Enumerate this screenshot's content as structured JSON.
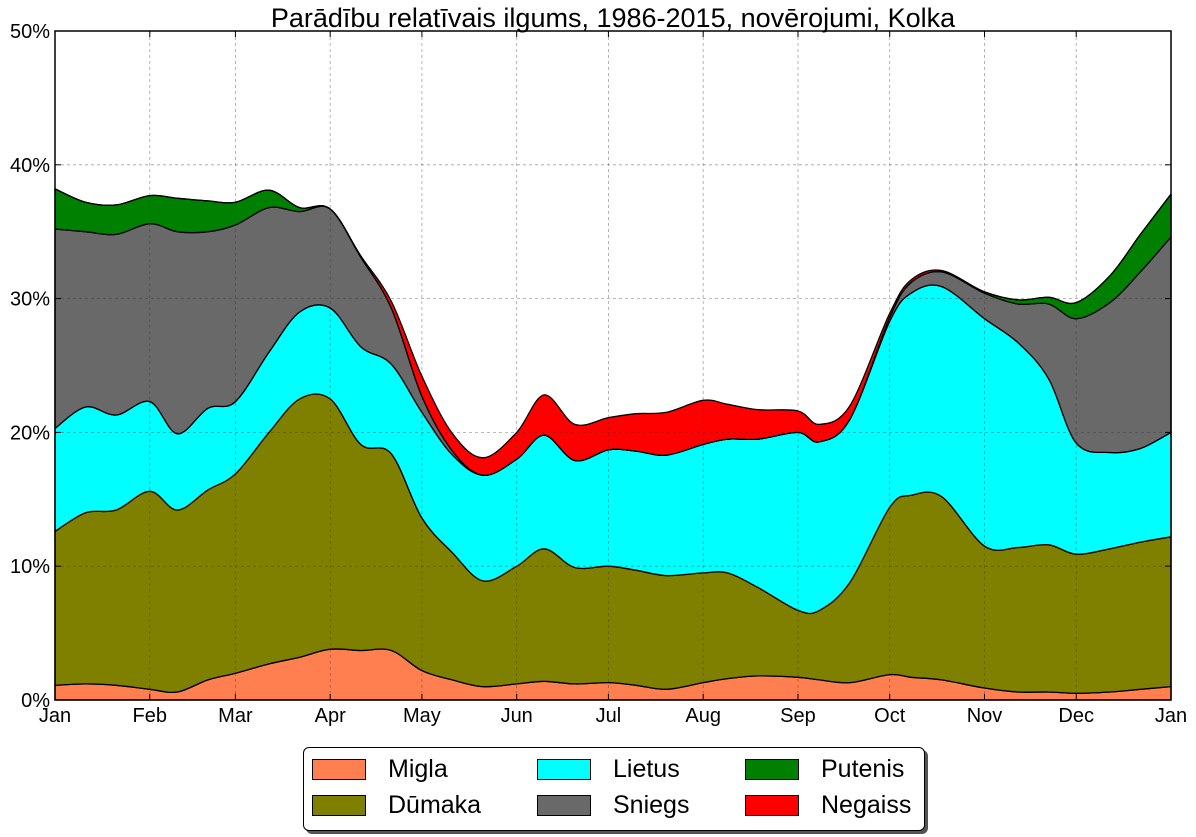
{
  "chart_data": {
    "type": "area",
    "stacked": true,
    "title": "Parādību relatīvais ilgums, 1986-2015, novērojumi, Kolka",
    "xlabel": "",
    "ylabel": "",
    "xlim": [
      0,
      365
    ],
    "ylim": [
      0,
      50
    ],
    "grid": true,
    "legend_position": "bottom-center",
    "x_ticks": [
      {
        "value": 0,
        "label": "Jan"
      },
      {
        "value": 31,
        "label": "Feb"
      },
      {
        "value": 59,
        "label": "Mar"
      },
      {
        "value": 90,
        "label": "Apr"
      },
      {
        "value": 120,
        "label": "May"
      },
      {
        "value": 151,
        "label": "Jun"
      },
      {
        "value": 181,
        "label": "Jul"
      },
      {
        "value": 212,
        "label": "Aug"
      },
      {
        "value": 243,
        "label": "Sep"
      },
      {
        "value": 273,
        "label": "Oct"
      },
      {
        "value": 304,
        "label": "Nov"
      },
      {
        "value": 334,
        "label": "Dec"
      },
      {
        "value": 365,
        "label": "Jan"
      }
    ],
    "y_ticks": [
      {
        "value": 0,
        "label": "0%"
      },
      {
        "value": 10,
        "label": "10%"
      },
      {
        "value": 20,
        "label": "20%"
      },
      {
        "value": 30,
        "label": "30%"
      },
      {
        "value": 40,
        "label": "40%"
      },
      {
        "value": 50,
        "label": "50%"
      }
    ],
    "x": [
      0,
      10,
      20,
      31,
      40,
      50,
      59,
      70,
      80,
      90,
      100,
      110,
      120,
      130,
      140,
      151,
      160,
      170,
      181,
      190,
      200,
      212,
      220,
      230,
      243,
      250,
      260,
      273,
      280,
      290,
      304,
      315,
      325,
      334,
      345,
      355,
      365
    ],
    "series": [
      {
        "name": "Migla",
        "color": "#ff7f50",
        "values": [
          1.1,
          1.2,
          1.1,
          0.8,
          0.6,
          1.5,
          2.0,
          2.7,
          3.2,
          3.8,
          3.7,
          3.7,
          2.2,
          1.5,
          1.0,
          1.2,
          1.4,
          1.2,
          1.3,
          1.1,
          0.8,
          1.3,
          1.6,
          1.8,
          1.7,
          1.5,
          1.3,
          1.9,
          1.7,
          1.5,
          0.9,
          0.6,
          0.6,
          0.5,
          0.6,
          0.8,
          1.0
        ]
      },
      {
        "name": "Dūmaka",
        "color": "#808000",
        "values": [
          11.5,
          12.8,
          13.1,
          14.8,
          13.6,
          14.2,
          14.9,
          17.3,
          19.3,
          18.7,
          15.4,
          14.7,
          11.4,
          9.5,
          7.9,
          8.8,
          9.9,
          8.7,
          8.7,
          8.6,
          8.5,
          8.2,
          7.9,
          6.6,
          5.0,
          5.2,
          7.5,
          12.5,
          13.6,
          13.7,
          10.6,
          10.8,
          11.0,
          10.4,
          10.7,
          11.0,
          11.2
        ]
      },
      {
        "name": "Lietus",
        "color": "#00ffff",
        "values": [
          7.7,
          7.9,
          7.1,
          6.7,
          5.7,
          6.1,
          5.4,
          6.0,
          6.5,
          6.8,
          7.3,
          6.7,
          7.9,
          7.3,
          7.9,
          8.0,
          8.5,
          8.0,
          8.7,
          8.9,
          9.0,
          9.6,
          10.0,
          11.1,
          13.3,
          12.6,
          12.2,
          13.9,
          15.1,
          15.7,
          17.0,
          15.3,
          12.4,
          8.3,
          7.2,
          7.0,
          7.8
        ]
      },
      {
        "name": "Sniegs",
        "color": "#696969",
        "values": [
          14.9,
          13.1,
          13.5,
          13.3,
          15.1,
          13.2,
          13.2,
          10.8,
          7.5,
          7.4,
          6.7,
          4.2,
          1.2,
          0.3,
          0.0,
          0.0,
          0.0,
          0.0,
          0.0,
          0.0,
          0.0,
          0.0,
          0.0,
          0.0,
          0.0,
          0.0,
          0.0,
          0.3,
          0.8,
          1.1,
          1.9,
          2.9,
          5.6,
          9.3,
          11.2,
          13.2,
          14.6
        ]
      },
      {
        "name": "Putenis",
        "color": "#008000",
        "values": [
          3.0,
          2.2,
          2.2,
          2.1,
          2.5,
          2.3,
          1.7,
          1.3,
          0.3,
          0.0,
          0.0,
          0.0,
          0.0,
          0.0,
          0.0,
          0.0,
          0.0,
          0.0,
          0.0,
          0.0,
          0.0,
          0.0,
          0.0,
          0.0,
          0.0,
          0.0,
          0.0,
          0.0,
          0.0,
          0.0,
          0.1,
          0.3,
          0.5,
          1.2,
          2.0,
          2.8,
          3.2
        ]
      },
      {
        "name": "Negaiss",
        "color": "#ff0000",
        "values": [
          0.0,
          0.0,
          0.0,
          0.0,
          0.0,
          0.0,
          0.0,
          0.0,
          0.0,
          0.0,
          0.1,
          0.5,
          1.5,
          1.3,
          1.3,
          2.0,
          3.0,
          2.7,
          2.4,
          2.8,
          3.2,
          3.3,
          2.6,
          2.2,
          1.6,
          1.3,
          1.0,
          0.3,
          0.2,
          0.1,
          0.0,
          0.0,
          0.0,
          0.0,
          0.0,
          0.0,
          0.0
        ]
      }
    ]
  },
  "legend": {
    "items": [
      {
        "label": "Migla",
        "color": "#ff7f50"
      },
      {
        "label": "Dūmaka",
        "color": "#808000"
      },
      {
        "label": "Lietus",
        "color": "#00ffff"
      },
      {
        "label": "Sniegs",
        "color": "#696969"
      },
      {
        "label": "Putenis",
        "color": "#008000"
      },
      {
        "label": "Negaiss",
        "color": "#ff0000"
      }
    ]
  }
}
